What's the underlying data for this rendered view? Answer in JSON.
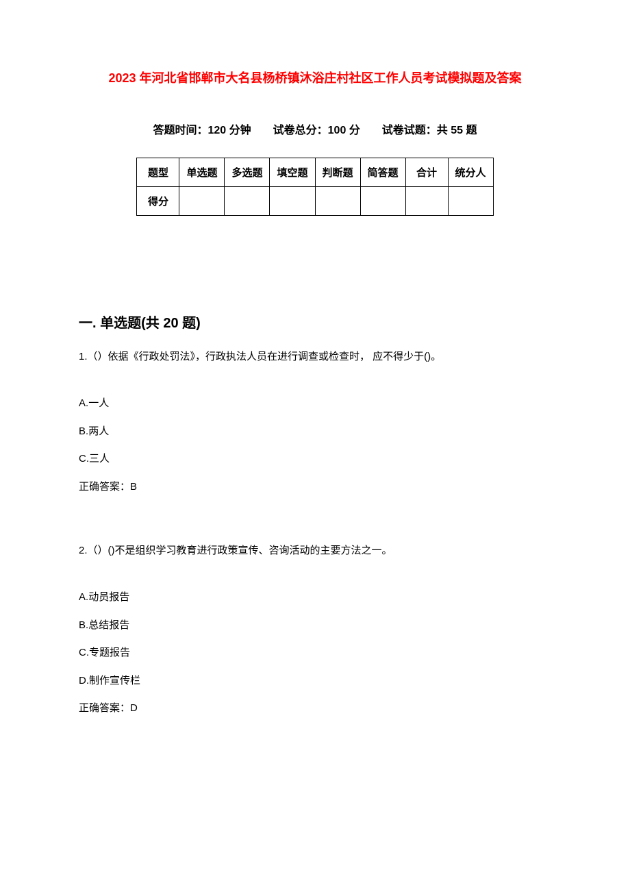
{
  "title": "2023 年河北省邯郸市大名县杨桥镇沐浴庄村社区工作人员考试模拟题及答案",
  "exam_info": "答题时间：120 分钟　　试卷总分：100 分　　试卷试题：共 55 题",
  "table": {
    "headers": [
      "题型",
      "单选题",
      "多选题",
      "填空题",
      "判断题",
      "简答题",
      "合计",
      "统分人"
    ],
    "row_label": "得分",
    "border_color": "#000000",
    "cell_padding": 10,
    "font_size": 15
  },
  "section1": {
    "title": "一. 单选题(共 20 题)",
    "questions": [
      {
        "number": "1.",
        "text": "（）依据《行政处罚法》，行政执法人员在进行调查或检查时，  应不得少于()。",
        "options": [
          {
            "label": "A.",
            "text": "一人"
          },
          {
            "label": "B.",
            "text": "两人"
          },
          {
            "label": "C.",
            "text": "三人"
          }
        ],
        "answer_label": "正确答案：",
        "answer": "B"
      },
      {
        "number": "2.",
        "text": "（）()不是组织学习教育进行政策宣传、咨询活动的主要方法之一。",
        "options": [
          {
            "label": "A.",
            "text": "动员报告"
          },
          {
            "label": "B.",
            "text": "总结报告"
          },
          {
            "label": "C.",
            "text": "专题报告"
          },
          {
            "label": "D.",
            "text": "制作宣传栏"
          }
        ],
        "answer_label": "正确答案：",
        "answer": "D"
      }
    ]
  },
  "colors": {
    "title_color": "#ff0000",
    "text_color": "#000000",
    "background": "#ffffff"
  },
  "typography": {
    "title_fontsize": 18,
    "info_fontsize": 16,
    "section_fontsize": 20,
    "body_fontsize": 15
  }
}
